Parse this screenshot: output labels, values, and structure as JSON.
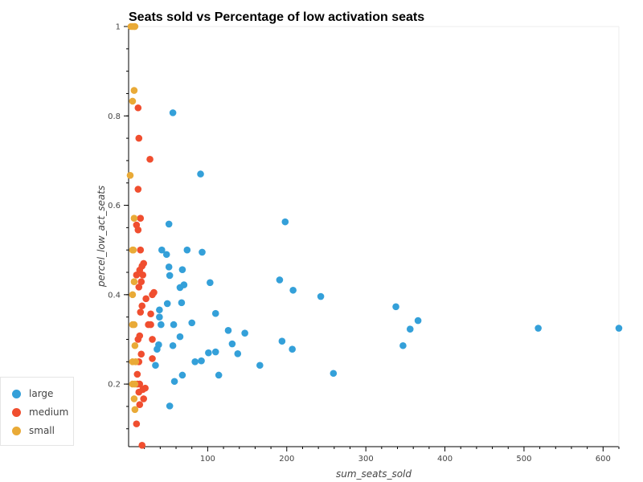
{
  "chart_data": {
    "type": "scatter",
    "title": "Seats sold vs Percentage of low activation seats",
    "xlabel": "sum_seats_sold",
    "ylabel": "percel_low_act_seats",
    "xlim": [
      0,
      620
    ],
    "ylim": [
      0.06,
      1.0
    ],
    "x_ticks": [
      100,
      200,
      300,
      400,
      500,
      600
    ],
    "y_ticks": [
      0.2,
      0.4,
      0.6,
      0.8,
      1
    ],
    "y_tick_labels": [
      "0.2",
      "0.4",
      "0.6",
      "0.8",
      "1"
    ],
    "grid": false,
    "legend_position": "bottom-left",
    "series": [
      {
        "name": "large",
        "color": "#34a0d9",
        "points": [
          [
            56,
            0.807
          ],
          [
            91,
            0.67
          ],
          [
            198,
            0.563
          ],
          [
            51,
            0.558
          ],
          [
            42,
            0.5
          ],
          [
            74,
            0.5
          ],
          [
            93,
            0.495
          ],
          [
            48,
            0.49
          ],
          [
            51,
            0.462
          ],
          [
            68,
            0.456
          ],
          [
            52,
            0.443
          ],
          [
            191,
            0.433
          ],
          [
            103,
            0.427
          ],
          [
            70,
            0.422
          ],
          [
            65,
            0.416
          ],
          [
            208,
            0.41
          ],
          [
            243,
            0.396
          ],
          [
            338,
            0.373
          ],
          [
            49,
            0.38
          ],
          [
            67,
            0.382
          ],
          [
            39,
            0.366
          ],
          [
            110,
            0.358
          ],
          [
            366,
            0.342
          ],
          [
            39,
            0.35
          ],
          [
            80,
            0.337
          ],
          [
            41,
            0.333
          ],
          [
            57,
            0.333
          ],
          [
            518,
            0.325
          ],
          [
            620,
            0.325
          ],
          [
            356,
            0.323
          ],
          [
            126,
            0.32
          ],
          [
            147,
            0.314
          ],
          [
            65,
            0.306
          ],
          [
            194,
            0.296
          ],
          [
            131,
            0.29
          ],
          [
            38,
            0.288
          ],
          [
            56,
            0.286
          ],
          [
            347,
            0.286
          ],
          [
            36,
            0.278
          ],
          [
            207,
            0.278
          ],
          [
            110,
            0.272
          ],
          [
            101,
            0.27
          ],
          [
            138,
            0.268
          ],
          [
            92,
            0.252
          ],
          [
            84,
            0.25
          ],
          [
            34,
            0.242
          ],
          [
            166,
            0.242
          ],
          [
            259,
            0.224
          ],
          [
            68,
            0.22
          ],
          [
            114,
            0.22
          ],
          [
            58,
            0.206
          ],
          [
            52,
            0.151
          ]
        ]
      },
      {
        "name": "medium",
        "color": "#f04e2f",
        "points": [
          [
            12,
            0.818
          ],
          [
            13,
            0.75
          ],
          [
            27,
            0.703
          ],
          [
            12,
            0.636
          ],
          [
            15,
            0.571
          ],
          [
            10,
            0.556
          ],
          [
            12,
            0.545
          ],
          [
            15,
            0.5
          ],
          [
            19,
            0.47
          ],
          [
            17,
            0.464
          ],
          [
            14,
            0.455
          ],
          [
            10,
            0.444
          ],
          [
            18,
            0.444
          ],
          [
            16,
            0.429
          ],
          [
            13,
            0.417
          ],
          [
            32,
            0.405
          ],
          [
            30,
            0.4
          ],
          [
            22,
            0.391
          ],
          [
            17,
            0.375
          ],
          [
            15,
            0.361
          ],
          [
            28,
            0.357
          ],
          [
            25,
            0.333
          ],
          [
            28,
            0.333
          ],
          [
            14,
            0.308
          ],
          [
            12,
            0.3
          ],
          [
            30,
            0.3
          ],
          [
            16,
            0.267
          ],
          [
            30,
            0.257
          ],
          [
            13,
            0.25
          ],
          [
            11,
            0.222
          ],
          [
            11,
            0.2
          ],
          [
            14,
            0.2
          ],
          [
            21,
            0.191
          ],
          [
            18,
            0.188
          ],
          [
            13,
            0.182
          ],
          [
            19,
            0.167
          ],
          [
            14,
            0.154
          ],
          [
            10,
            0.111
          ],
          [
            17,
            0.063
          ]
        ]
      },
      {
        "name": "small",
        "color": "#e9aa37",
        "points": [
          [
            3,
            1.0
          ],
          [
            5,
            1.0
          ],
          [
            7,
            1.0
          ],
          [
            8,
            1.0
          ],
          [
            7,
            0.857
          ],
          [
            5,
            0.833
          ],
          [
            2,
            0.667
          ],
          [
            7,
            0.571
          ],
          [
            5,
            0.5
          ],
          [
            6,
            0.5
          ],
          [
            7,
            0.429
          ],
          [
            5,
            0.4
          ],
          [
            5,
            0.333
          ],
          [
            7,
            0.333
          ],
          [
            8,
            0.286
          ],
          [
            5,
            0.25
          ],
          [
            9,
            0.25
          ],
          [
            5,
            0.2
          ],
          [
            8,
            0.2
          ],
          [
            7,
            0.167
          ],
          [
            8,
            0.143
          ]
        ]
      }
    ]
  }
}
